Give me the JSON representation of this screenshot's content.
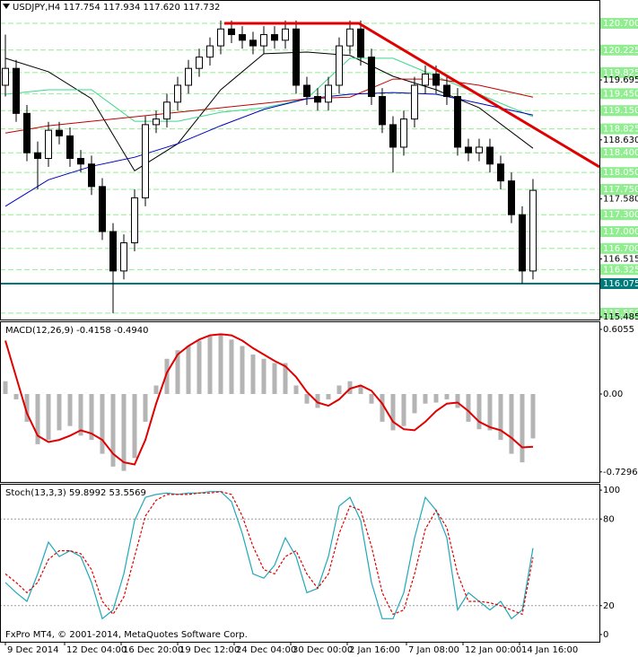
{
  "chart_data": [
    {
      "type": "candlestick",
      "title": "USDJPY,H4 117.754 117.934 117.620 117.732",
      "up_color": "#ffffff",
      "down_color": "#000000",
      "xlim": [
        -0.5,
        55.17
      ],
      "ylim": [
        115.437,
        121.115
      ],
      "yticks": [
        119.695,
        {
          "value": 118.63,
          "label": "118.630"
        },
        {
          "value": 117.58,
          "label": "117.580"
        },
        116.515,
        115.485
      ],
      "level_color": "#90ee90",
      "levels": [
        {
          "value": 120.7,
          "label": "120.700"
        },
        {
          "value": 120.225,
          "label": "120.225"
        },
        {
          "value": 119.825,
          "label": "119.825"
        },
        {
          "value": 119.45,
          "label": "119.450"
        },
        {
          "value": 119.15,
          "label": "119.150"
        },
        {
          "value": 118.825,
          "label": "118.825"
        },
        {
          "value": 118.4,
          "label": "118.400"
        },
        {
          "value": 118.05,
          "label": "118.050"
        },
        {
          "value": 117.75,
          "label": "117.750"
        },
        {
          "value": 117.3,
          "label": "117.300"
        },
        {
          "value": 117,
          "label": "117.000"
        },
        {
          "value": 116.7,
          "label": "116.700"
        },
        {
          "value": 116.325,
          "label": "116.325"
        },
        {
          "value": 115.55,
          "label": "115.550"
        }
      ],
      "support_color": "#007a7a",
      "support": {
        "value": 116.075,
        "label": "116.075"
      },
      "ohlc": [
        [
          119.6,
          120.5,
          119.4,
          119.9
        ],
        [
          119.9,
          120.05,
          118.95,
          119.1
        ],
        [
          119.1,
          119.25,
          118.25,
          118.4
        ],
        [
          118.4,
          118.6,
          117.75,
          118.3
        ],
        [
          118.3,
          118.95,
          118.15,
          118.8
        ],
        [
          118.8,
          118.95,
          118.55,
          118.7
        ],
        [
          118.7,
          118.85,
          118.15,
          118.3
        ],
        [
          118.3,
          118.45,
          118.05,
          118.2
        ],
        [
          118.2,
          118.35,
          117.65,
          117.8
        ],
        [
          117.8,
          117.95,
          116.85,
          117.0
        ],
        [
          117.0,
          117.15,
          115.55,
          116.3
        ],
        [
          116.3,
          116.95,
          116.15,
          116.8
        ],
        [
          116.8,
          117.75,
          116.65,
          117.6
        ],
        [
          117.6,
          119.05,
          117.45,
          118.9
        ],
        [
          118.9,
          119.15,
          118.75,
          119.0
        ],
        [
          119.0,
          119.45,
          118.85,
          119.3
        ],
        [
          119.3,
          119.75,
          119.15,
          119.6
        ],
        [
          119.6,
          120.05,
          119.45,
          119.9
        ],
        [
          119.9,
          120.25,
          119.75,
          120.1
        ],
        [
          120.1,
          120.45,
          119.95,
          120.3
        ],
        [
          120.3,
          120.75,
          120.15,
          120.6
        ],
        [
          120.6,
          120.75,
          120.35,
          120.5
        ],
        [
          120.5,
          120.65,
          120.25,
          120.4
        ],
        [
          120.4,
          120.55,
          120.15,
          120.3
        ],
        [
          120.3,
          120.65,
          120.15,
          120.5
        ],
        [
          120.5,
          120.65,
          120.25,
          120.4
        ],
        [
          120.4,
          120.75,
          120.25,
          120.6
        ],
        [
          120.6,
          120.75,
          119.45,
          119.6
        ],
        [
          119.6,
          119.75,
          119.25,
          119.4
        ],
        [
          119.4,
          119.55,
          119.15,
          119.3
        ],
        [
          119.3,
          119.75,
          119.15,
          119.6
        ],
        [
          119.6,
          120.45,
          119.45,
          120.3
        ],
        [
          120.3,
          120.75,
          120.15,
          120.6
        ],
        [
          120.6,
          120.75,
          119.95,
          120.1
        ],
        [
          120.1,
          120.25,
          119.25,
          119.4
        ],
        [
          119.4,
          119.55,
          118.75,
          118.9
        ],
        [
          118.9,
          119.05,
          118.05,
          118.5
        ],
        [
          118.5,
          119.15,
          118.35,
          119.0
        ],
        [
          119.0,
          119.75,
          118.85,
          119.6
        ],
        [
          119.6,
          119.95,
          119.45,
          119.8
        ],
        [
          119.8,
          119.95,
          119.45,
          119.6
        ],
        [
          119.6,
          119.75,
          119.25,
          119.4
        ],
        [
          119.4,
          119.55,
          118.35,
          118.5
        ],
        [
          118.5,
          118.65,
          118.25,
          118.4
        ],
        [
          118.4,
          118.65,
          118.25,
          118.5
        ],
        [
          118.5,
          118.65,
          118.05,
          118.2
        ],
        [
          118.2,
          118.35,
          117.75,
          117.9
        ],
        [
          117.9,
          118.05,
          117.15,
          117.3
        ],
        [
          117.3,
          117.45,
          116.075,
          116.3
        ],
        [
          116.3,
          117.934,
          116.15,
          117.732
        ]
      ],
      "moving_averages": {
        "x": [
          0,
          4,
          8,
          12,
          16,
          20,
          24,
          28,
          32,
          36,
          40,
          44,
          49
        ],
        "series": [
          {
            "color": "#000000",
            "values": [
              120.08,
              119.84,
              119.36,
              118.08,
              118.56,
              119.52,
              120.16,
              120.19,
              120.13,
              119.76,
              119.52,
              119.2,
              118.48
            ]
          },
          {
            "color": "#3cd88c",
            "values": [
              119.44,
              119.52,
              119.52,
              118.96,
              118.96,
              119.12,
              119.2,
              119.36,
              120.08,
              120.08,
              119.76,
              119.44,
              119.04
            ]
          },
          {
            "color": "#c00000",
            "values": [
              118.75,
              118.88,
              118.96,
              119.04,
              119.12,
              119.2,
              119.28,
              119.36,
              119.39,
              119.71,
              119.71,
              119.6,
              119.39
            ]
          },
          {
            "color": "#0000c0",
            "values": [
              117.45,
              117.92,
              118.16,
              118.32,
              118.56,
              118.88,
              119.17,
              119.36,
              119.44,
              119.47,
              119.44,
              119.28,
              119.07
            ]
          }
        ]
      },
      "trend_line": {
        "color": "#e00000",
        "x": [
          20.33,
          32.83,
          55.17
        ],
        "y": [
          120.7,
          120.7,
          118.15
        ]
      }
    },
    {
      "type": "macd",
      "title": "MACD(12,26,9) -0.4158 -0.4940",
      "xlim": [
        -0.5,
        55.17
      ],
      "ylim": [
        -0.824,
        0.681
      ],
      "yticks": [
        0.6055,
        {
          "value": 0,
          "label": "0.00"
        },
        -0.7296
      ],
      "histogram": {
        "color": "#b4b4b4",
        "values": [
          0.12,
          -0.05,
          -0.26,
          -0.47,
          -0.43,
          -0.34,
          -0.3,
          -0.39,
          -0.43,
          -0.56,
          -0.68,
          -0.72,
          -0.6,
          -0.26,
          0.08,
          0.33,
          0.41,
          0.45,
          0.5,
          0.54,
          0.56,
          0.51,
          0.45,
          0.37,
          0.33,
          0.29,
          0.29,
          0.08,
          -0.09,
          -0.13,
          -0.05,
          0.08,
          0.12,
          0.08,
          -0.09,
          -0.26,
          -0.34,
          -0.3,
          -0.18,
          -0.09,
          -0.08,
          -0.05,
          -0.13,
          -0.26,
          -0.33,
          -0.34,
          -0.43,
          -0.56,
          -0.64,
          -0.4158
        ]
      },
      "signal": {
        "color": "#e00000",
        "values": [
          0.5,
          0.16,
          -0.18,
          -0.39,
          -0.45,
          -0.43,
          -0.39,
          -0.34,
          -0.37,
          -0.43,
          -0.56,
          -0.64,
          -0.66,
          -0.43,
          -0.09,
          0.2,
          0.37,
          0.45,
          0.51,
          0.55,
          0.56,
          0.55,
          0.5,
          0.43,
          0.37,
          0.31,
          0.26,
          0.16,
          0.02,
          -0.08,
          -0.11,
          -0.05,
          0.05,
          0.08,
          0.03,
          -0.09,
          -0.26,
          -0.33,
          -0.34,
          -0.26,
          -0.16,
          -0.09,
          -0.08,
          -0.16,
          -0.26,
          -0.31,
          -0.34,
          -0.41,
          -0.5,
          -0.494
        ]
      }
    },
    {
      "type": "stochastic",
      "title": "Stoch(13,3,3) 59.8992 53.5569",
      "watermark": "FxPro MT4, © 2001-2014, MetaQuotes Software Corp.",
      "xlim": [
        -0.5,
        55.17
      ],
      "ylim": [
        -5,
        104.4
      ],
      "yticks": [
        100,
        80,
        20,
        0
      ],
      "levels": [
        80,
        20
      ],
      "xticks": [
        {
          "value": 0,
          "label": "9 Dec 2014"
        },
        {
          "value": 5.5,
          "label": "12 Dec 04:00"
        },
        {
          "value": 10.75,
          "label": "16 Dec 20:00"
        },
        {
          "value": 16,
          "label": "19 Dec 12:00"
        },
        {
          "value": 21.25,
          "label": "24 Dec 04:00"
        },
        {
          "value": 26.5,
          "label": "30 Dec 00:00"
        },
        {
          "value": 31.75,
          "label": "2 Jan 16:00"
        },
        {
          "value": 37.25,
          "label": "7 Jan 08:00"
        },
        {
          "value": 42.5,
          "label": "12 Jan 00:00"
        },
        {
          "value": 47.75,
          "label": "14 Jan 16:00"
        }
      ],
      "series": [
        {
          "color": "#20a8b8",
          "style": "solid",
          "values": [
            36,
            29,
            23,
            42,
            64,
            54,
            58,
            54,
            36,
            11,
            17,
            42,
            79,
            95,
            97,
            98,
            97,
            98,
            98,
            99,
            99,
            92,
            70,
            42,
            39,
            48,
            67,
            54,
            29,
            32,
            54,
            89,
            95,
            79,
            36,
            11,
            11,
            29,
            67,
            95,
            86,
            67,
            17,
            29,
            23,
            17,
            23,
            11,
            17,
            59.8992
          ]
        },
        {
          "color": "#e00000",
          "style": "dashed",
          "values": [
            42,
            36,
            29,
            36,
            52,
            58,
            58,
            56,
            45,
            23,
            14,
            26,
            54,
            82,
            93,
            97,
            97,
            97,
            98,
            98,
            99,
            97,
            82,
            61,
            45,
            42,
            54,
            58,
            42,
            32,
            42,
            70,
            89,
            86,
            61,
            29,
            14,
            17,
            42,
            73,
            86,
            74,
            42,
            23,
            23,
            22,
            20,
            17,
            14,
            53.5569
          ]
        }
      ]
    }
  ]
}
